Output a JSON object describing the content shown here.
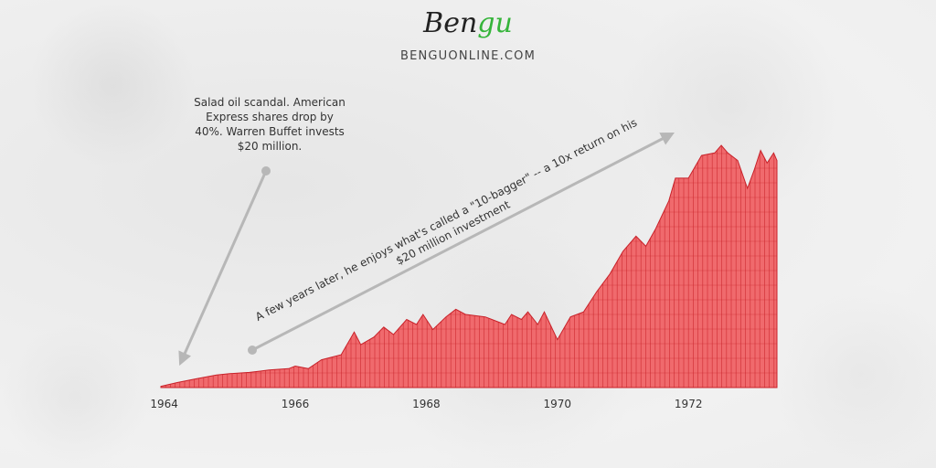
{
  "brand": {
    "logo_main": "Ben",
    "logo_accent": "gu",
    "site": "BENGUONLINE.COM"
  },
  "colors": {
    "area_fill": "#f06a6d",
    "area_line": "#c8222a",
    "arrow": "#b7b7b7",
    "logo_accent": "#35b43a"
  },
  "annotations": {
    "scandal": "Salad oil scandal. American Express shares drop by 40%. Warren Buffet invests $20 million.",
    "tenbagger_line1": "A few years later, he enjoys what's called a \"10-bagger\" -- a 10x return on his",
    "tenbagger_line2": "$20 million investment"
  },
  "chart_data": {
    "type": "area",
    "title": "",
    "xlabel": "",
    "ylabel": "",
    "x_ticks": [
      "1964",
      "1966",
      "1968",
      "1970",
      "1972"
    ],
    "xlim": [
      1963.95,
      1973.35
    ],
    "ylim": [
      0,
      10
    ],
    "grid": true,
    "series": [
      {
        "x": [
          1963.95,
          1964.2,
          1964.5,
          1964.8,
          1965.0,
          1965.3,
          1965.45,
          1965.6,
          1965.9,
          1966.0,
          1966.2,
          1966.4,
          1966.7,
          1966.9,
          1967.0,
          1967.2,
          1967.35,
          1967.5,
          1967.7,
          1967.85,
          1967.95,
          1968.1,
          1968.3,
          1968.45,
          1968.6,
          1968.9,
          1969.0,
          1969.2,
          1969.3,
          1969.45,
          1969.55,
          1969.7,
          1969.8,
          1970.0,
          1970.2,
          1970.4,
          1970.6,
          1970.8,
          1971.0,
          1971.2,
          1971.35,
          1971.5,
          1971.7,
          1971.8,
          1972.0,
          1972.2,
          1972.4,
          1972.5,
          1972.6,
          1972.75,
          1972.9,
          1973.0,
          1973.1,
          1973.2,
          1973.3,
          1973.35
        ],
        "y": [
          0.05,
          0.2,
          0.35,
          0.5,
          0.55,
          0.6,
          0.65,
          0.7,
          0.75,
          0.85,
          0.75,
          1.1,
          1.3,
          2.2,
          1.7,
          2.0,
          2.4,
          2.1,
          2.7,
          2.5,
          2.9,
          2.3,
          2.8,
          3.1,
          2.9,
          2.8,
          2.7,
          2.5,
          2.9,
          2.7,
          3.0,
          2.5,
          3.0,
          1.9,
          2.8,
          3.0,
          3.8,
          4.5,
          5.4,
          6.0,
          5.6,
          6.3,
          7.4,
          8.3,
          8.3,
          9.2,
          9.3,
          9.6,
          9.3,
          9.0,
          7.9,
          8.6,
          9.4,
          8.9,
          9.3,
          9.0
        ]
      }
    ]
  }
}
